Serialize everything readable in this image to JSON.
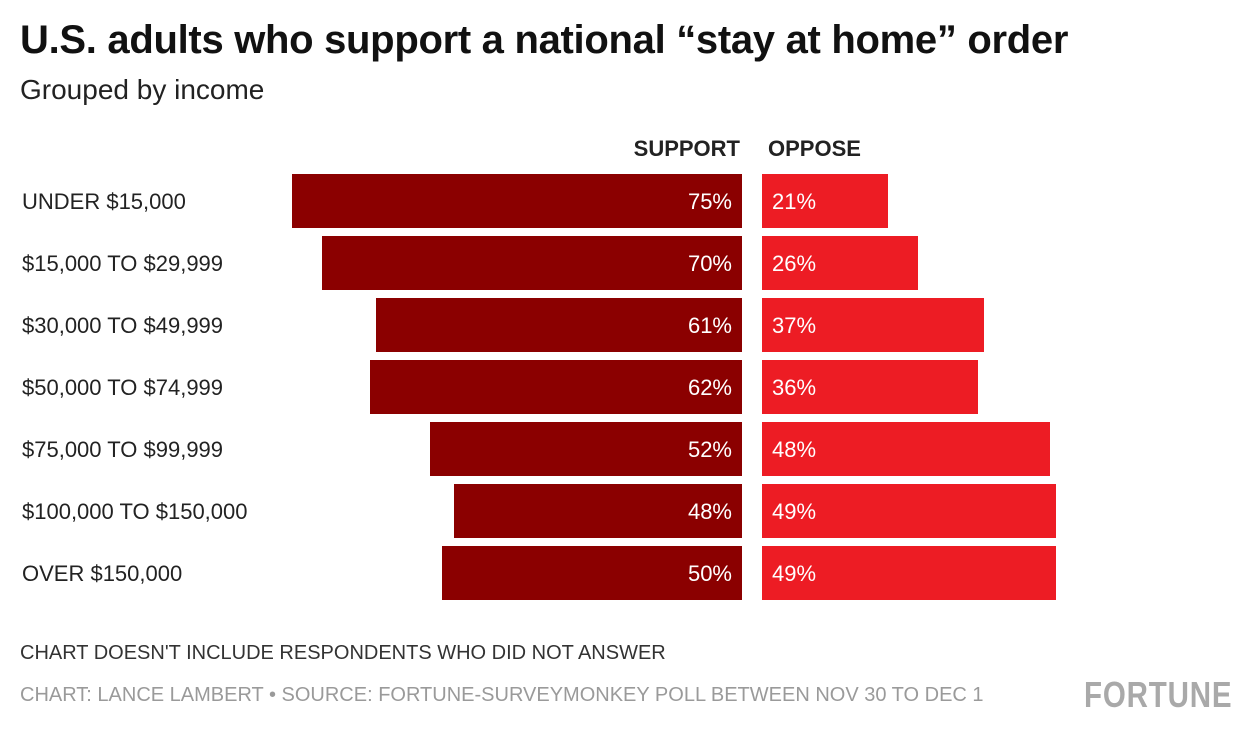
{
  "header": {
    "title": "U.S. adults who support a national “stay at home” order",
    "subtitle": "Grouped by income"
  },
  "footer": {
    "note": "CHART DOESN'T INCLUDE RESPONDENTS WHO DID NOT ANSWER",
    "credit": "CHART: LANCE LAMBERT • SOURCE: FORTUNE-SURVEYMONKEY POLL BETWEEN NOV 30 TO DEC 1",
    "logo": "FORTUNE"
  },
  "colors": {
    "support": "#8b0000",
    "oppose": "#ed1c24",
    "bar_text": "#ffffff"
  },
  "chart_data": {
    "type": "bar",
    "orientation": "horizontal-diverging",
    "categories": [
      "UNDER $15,000",
      "$15,000 TO $29,999",
      "$30,000 TO $49,999",
      "$50,000 TO $74,999",
      "$75,000 TO $99,999",
      "$100,000 TO $150,000",
      "OVER $150,000"
    ],
    "series": [
      {
        "name": "SUPPORT",
        "values": [
          75,
          70,
          61,
          62,
          52,
          48,
          50
        ],
        "labels": [
          "75%",
          "70%",
          "61%",
          "62%",
          "52%",
          "48%",
          "50%"
        ]
      },
      {
        "name": "OPPOSE",
        "values": [
          21,
          26,
          37,
          36,
          48,
          49,
          49
        ],
        "labels": [
          "21%",
          "26%",
          "37%",
          "36%",
          "48%",
          "49%",
          "49%"
        ]
      }
    ],
    "unit": "%",
    "grid": false
  }
}
